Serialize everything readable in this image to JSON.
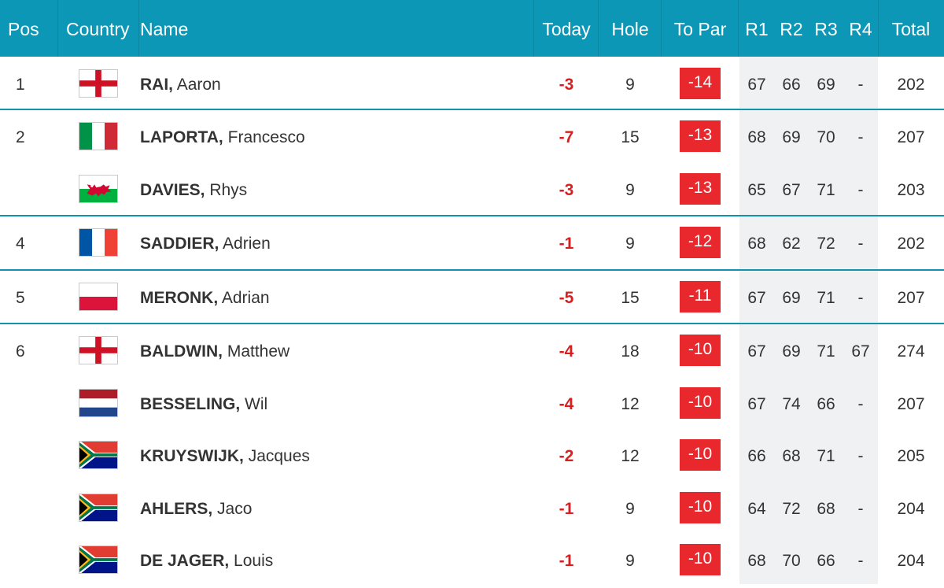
{
  "header": {
    "pos": "Pos",
    "country": "Country",
    "name": "Name",
    "today": "Today",
    "hole": "Hole",
    "to_par": "To Par",
    "r1": "R1",
    "r2": "R2",
    "r3": "R3",
    "r4": "R4",
    "total": "Total"
  },
  "colors": {
    "header_bg": "#0b97b5",
    "divider": "#1193ad",
    "today": "#d81e1e",
    "to_par_badge": "#e8282c",
    "rounds_bg": "#f0f1f3"
  },
  "rows": [
    {
      "pos": "1",
      "flag": "england-flag-icon",
      "last": "RAI,",
      "first": "Aaron",
      "today": "-3",
      "hole": "9",
      "to_par": "-14",
      "r1": "67",
      "r2": "66",
      "r3": "69",
      "r4": "-",
      "total": "202"
    },
    {
      "pos": "2",
      "flag": "italy-flag-icon",
      "last": "LAPORTA,",
      "first": "Francesco",
      "today": "-7",
      "hole": "15",
      "to_par": "-13",
      "r1": "68",
      "r2": "69",
      "r3": "70",
      "r4": "-",
      "total": "207"
    },
    {
      "pos": "",
      "flag": "wales-flag-icon",
      "last": "DAVIES,",
      "first": "Rhys",
      "today": "-3",
      "hole": "9",
      "to_par": "-13",
      "r1": "65",
      "r2": "67",
      "r3": "71",
      "r4": "-",
      "total": "203"
    },
    {
      "pos": "4",
      "flag": "france-flag-icon",
      "last": "SADDIER,",
      "first": "Adrien",
      "today": "-1",
      "hole": "9",
      "to_par": "-12",
      "r1": "68",
      "r2": "62",
      "r3": "72",
      "r4": "-",
      "total": "202"
    },
    {
      "pos": "5",
      "flag": "poland-flag-icon",
      "last": "MERONK,",
      "first": "Adrian",
      "today": "-5",
      "hole": "15",
      "to_par": "-11",
      "r1": "67",
      "r2": "69",
      "r3": "71",
      "r4": "-",
      "total": "207"
    },
    {
      "pos": "6",
      "flag": "england-flag-icon",
      "last": "BALDWIN,",
      "first": "Matthew",
      "today": "-4",
      "hole": "18",
      "to_par": "-10",
      "r1": "67",
      "r2": "69",
      "r3": "71",
      "r4": "67",
      "total": "274"
    },
    {
      "pos": "",
      "flag": "netherlands-flag-icon",
      "last": "BESSELING,",
      "first": "Wil",
      "today": "-4",
      "hole": "12",
      "to_par": "-10",
      "r1": "67",
      "r2": "74",
      "r3": "66",
      "r4": "-",
      "total": "207"
    },
    {
      "pos": "",
      "flag": "south-africa-flag-icon",
      "last": "KRUYSWIJK,",
      "first": "Jacques",
      "today": "-2",
      "hole": "12",
      "to_par": "-10",
      "r1": "66",
      "r2": "68",
      "r3": "71",
      "r4": "-",
      "total": "205"
    },
    {
      "pos": "",
      "flag": "south-africa-flag-icon",
      "last": "AHLERS,",
      "first": "Jaco",
      "today": "-1",
      "hole": "9",
      "to_par": "-10",
      "r1": "64",
      "r2": "72",
      "r3": "68",
      "r4": "-",
      "total": "204"
    },
    {
      "pos": "",
      "flag": "south-africa-flag-icon",
      "last": "DE JAGER,",
      "first": "Louis",
      "today": "-1",
      "hole": "9",
      "to_par": "-10",
      "r1": "68",
      "r2": "70",
      "r3": "66",
      "r4": "-",
      "total": "204"
    }
  ]
}
